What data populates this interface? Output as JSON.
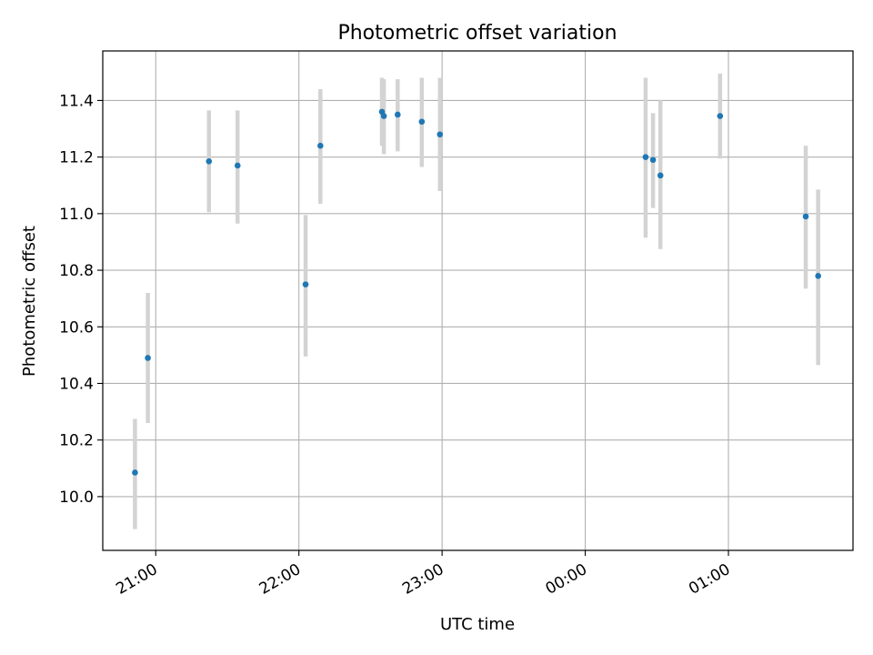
{
  "chart_data": {
    "type": "scatter",
    "title": "Photometric offset variation",
    "xlabel": "UTC time",
    "ylabel": "Photometric offset",
    "x_ticks": [
      "21:00",
      "22:00",
      "23:00",
      "00:00",
      "01:00"
    ],
    "x_tick_times": [
      "2000-01-01T21:00",
      "2000-01-01T22:00",
      "2000-01-01T23:00",
      "2000-01-02T00:00",
      "2000-01-02T01:00"
    ],
    "xlim": [
      "2000-01-01T20:37:48",
      "2000-01-02T01:52:12"
    ],
    "ylim": [
      9.81,
      11.575
    ],
    "y_ticks": [
      "10.0",
      "10.2",
      "10.4",
      "10.6",
      "10.8",
      "11.0",
      "11.2",
      "11.4"
    ],
    "grid": true,
    "marker_color": "#1f77b4",
    "errorbar_color": "#d3d3d3",
    "points": [
      {
        "t": "2000-01-01T20:51:18",
        "y": 10.085,
        "lo": 9.885,
        "hi": 10.275
      },
      {
        "t": "2000-01-01T20:56:42",
        "y": 10.49,
        "lo": 10.26,
        "hi": 10.72
      },
      {
        "t": "2000-01-01T21:22:18",
        "y": 11.185,
        "lo": 11.005,
        "hi": 11.365
      },
      {
        "t": "2000-01-01T21:34:18",
        "y": 11.17,
        "lo": 10.965,
        "hi": 11.365
      },
      {
        "t": "2000-01-01T22:02:48",
        "y": 10.75,
        "lo": 10.495,
        "hi": 10.995
      },
      {
        "t": "2000-01-01T22:09:00",
        "y": 11.24,
        "lo": 11.035,
        "hi": 11.44
      },
      {
        "t": "2000-01-01T22:34:48",
        "y": 11.36,
        "lo": 11.24,
        "hi": 11.48
      },
      {
        "t": "2000-01-01T22:35:36",
        "y": 11.345,
        "lo": 11.21,
        "hi": 11.475
      },
      {
        "t": "2000-01-01T22:41:24",
        "y": 11.35,
        "lo": 11.22,
        "hi": 11.475
      },
      {
        "t": "2000-01-01T22:51:30",
        "y": 11.325,
        "lo": 11.165,
        "hi": 11.48
      },
      {
        "t": "2000-01-01T22:59:06",
        "y": 11.28,
        "lo": 11.08,
        "hi": 11.48
      },
      {
        "t": "2000-01-02T00:25:18",
        "y": 11.2,
        "lo": 10.915,
        "hi": 11.48
      },
      {
        "t": "2000-01-02T00:28:24",
        "y": 11.19,
        "lo": 11.02,
        "hi": 11.355
      },
      {
        "t": "2000-01-02T00:31:30",
        "y": 11.135,
        "lo": 10.875,
        "hi": 11.4
      },
      {
        "t": "2000-01-02T00:56:30",
        "y": 11.345,
        "lo": 11.195,
        "hi": 11.495
      },
      {
        "t": "2000-01-02T01:32:24",
        "y": 10.99,
        "lo": 10.735,
        "hi": 11.24
      },
      {
        "t": "2000-01-02T01:37:36",
        "y": 10.78,
        "lo": 10.465,
        "hi": 11.085
      }
    ]
  }
}
